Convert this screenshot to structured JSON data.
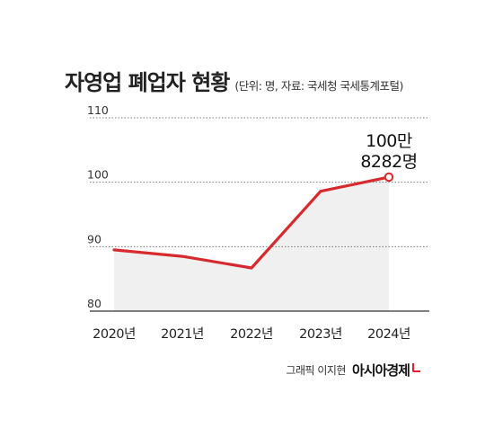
{
  "chart_data": {
    "type": "area",
    "title": "자영업 폐업자 현황",
    "subtitle": "(단위: 명, 자료: 국세청 국세통계포털)",
    "categories": [
      "2020년",
      "2021년",
      "2022년",
      "2023년",
      "2024년"
    ],
    "series": [
      {
        "values": [
          89.5,
          88.5,
          86.7,
          98.6,
          100.8
        ]
      }
    ],
    "yticks": [
      "110",
      "100",
      "90",
      "80"
    ],
    "ylim": [
      80,
      110
    ],
    "grid": true,
    "annotation": {
      "line1": "100만",
      "line2": "8282명",
      "category_index": 4
    },
    "colors": {
      "line": "#d62a2f",
      "area": "#f0f0f0",
      "grid": "#777777"
    }
  },
  "credit": {
    "text": "그래픽 이지현",
    "brand": "아시아경제"
  }
}
